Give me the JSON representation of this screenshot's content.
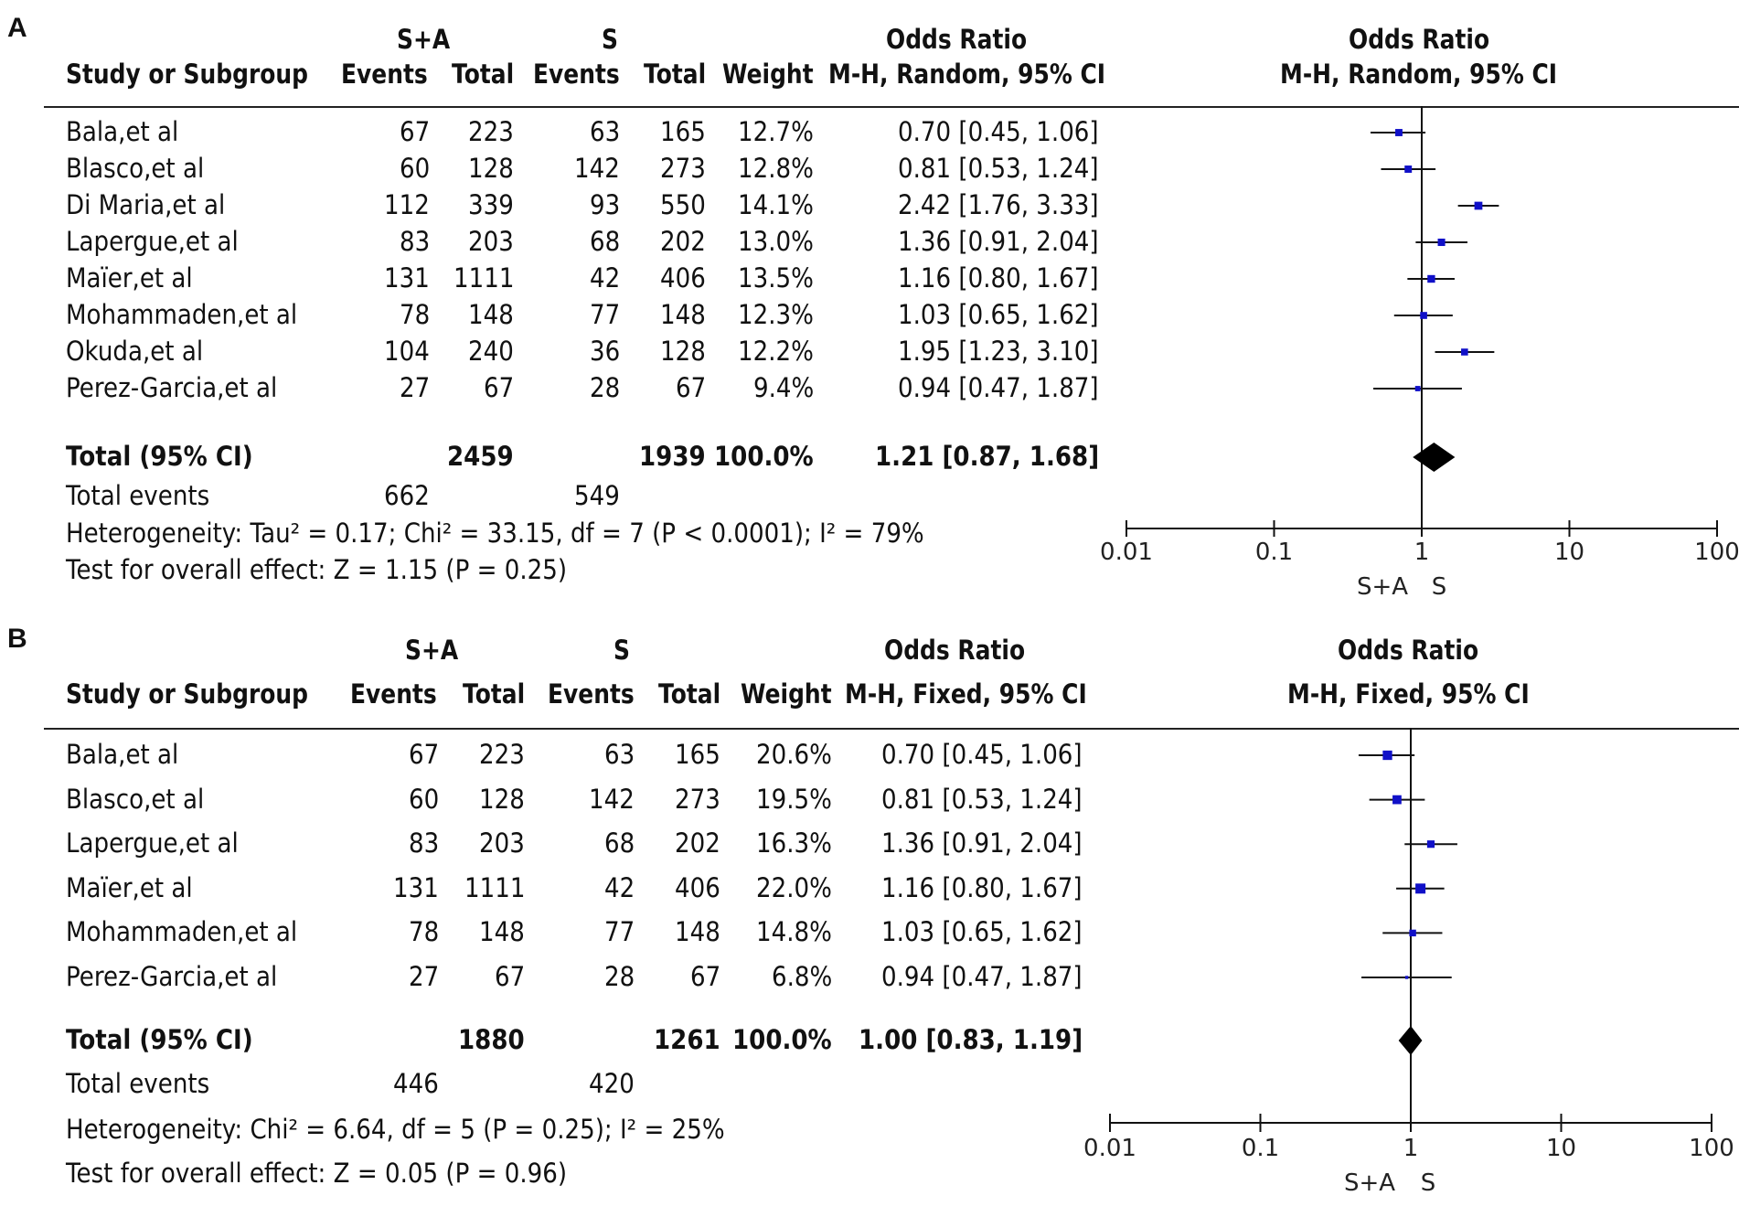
{
  "chart_data": [
    {
      "type": "forest",
      "panel_label": "A",
      "header": {
        "group1": "S+A",
        "group2": "S",
        "or_col_title": "Odds Ratio",
        "or_col_method": "M-H, Random, 95% CI",
        "plot_title": "Odds Ratio",
        "plot_method": "M-H, Random, 95% CI",
        "study_col": "Study or Subgroup",
        "events": "Events",
        "total": "Total",
        "weight": "Weight"
      },
      "studies": [
        {
          "name": "Bala,et al",
          "e1": "67",
          "n1": "223",
          "e2": "63",
          "n2": "165",
          "weight": "12.7%",
          "or_text": "0.70 [0.45, 1.06]",
          "or": 0.7,
          "lo": 0.45,
          "hi": 1.06,
          "w": 12.7
        },
        {
          "name": "Blasco,et al",
          "e1": "60",
          "n1": "128",
          "e2": "142",
          "n2": "273",
          "weight": "12.8%",
          "or_text": "0.81 [0.53, 1.24]",
          "or": 0.81,
          "lo": 0.53,
          "hi": 1.24,
          "w": 12.8
        },
        {
          "name": "Di Maria,et al",
          "e1": "112",
          "n1": "339",
          "e2": "93",
          "n2": "550",
          "weight": "14.1%",
          "or_text": "2.42 [1.76, 3.33]",
          "or": 2.42,
          "lo": 1.76,
          "hi": 3.33,
          "w": 14.1
        },
        {
          "name": "Lapergue,et al",
          "e1": "83",
          "n1": "203",
          "e2": "68",
          "n2": "202",
          "weight": "13.0%",
          "or_text": "1.36 [0.91, 2.04]",
          "or": 1.36,
          "lo": 0.91,
          "hi": 2.04,
          "w": 13.0
        },
        {
          "name": "Maïer,et al",
          "e1": "131",
          "n1": "1111",
          "e2": "42",
          "n2": "406",
          "weight": "13.5%",
          "or_text": "1.16 [0.80, 1.67]",
          "or": 1.16,
          "lo": 0.8,
          "hi": 1.67,
          "w": 13.5
        },
        {
          "name": "Mohammaden,et al",
          "e1": "78",
          "n1": "148",
          "e2": "77",
          "n2": "148",
          "weight": "12.3%",
          "or_text": "1.03 [0.65, 1.62]",
          "or": 1.03,
          "lo": 0.65,
          "hi": 1.62,
          "w": 12.3
        },
        {
          "name": "Okuda,et al",
          "e1": "104",
          "n1": "240",
          "e2": "36",
          "n2": "128",
          "weight": "12.2%",
          "or_text": "1.95 [1.23, 3.10]",
          "or": 1.95,
          "lo": 1.23,
          "hi": 3.1,
          "w": 12.2
        },
        {
          "name": "Perez-Garcia,et al",
          "e1": "27",
          "n1": "67",
          "e2": "28",
          "n2": "67",
          "weight": "9.4%",
          "or_text": "0.94 [0.47, 1.87]",
          "or": 0.94,
          "lo": 0.47,
          "hi": 1.87,
          "w": 9.4
        }
      ],
      "total": {
        "label": "Total (95% CI)",
        "n1": "2459",
        "n2": "1939",
        "weight": "100.0%",
        "or_text": "1.21 [0.87, 1.68]",
        "or": 1.21,
        "lo": 0.87,
        "hi": 1.68
      },
      "total_events": {
        "label": "Total events",
        "e1": "662",
        "e2": "549"
      },
      "heterogeneity": "Heterogeneity: Tau² = 0.17; Chi² = 33.15, df = 7 (P < 0.0001); I² = 79%",
      "overall_effect": "Test for overall effect: Z = 1.15 (P = 0.25)",
      "x_scale": "log",
      "xlim": [
        0.01,
        100
      ],
      "ticks": [
        0.01,
        0.1,
        1,
        10,
        100
      ],
      "tick_labels": [
        "0.01",
        "0.1",
        "1",
        "10",
        "100"
      ],
      "favours": [
        "S+A",
        "S"
      ]
    },
    {
      "type": "forest",
      "panel_label": "B",
      "header": {
        "group1": "S+A",
        "group2": "S",
        "or_col_title": "Odds Ratio",
        "or_col_method": "M-H, Fixed, 95% CI",
        "plot_title": "Odds Ratio",
        "plot_method": "M-H, Fixed, 95% CI",
        "study_col": "Study or Subgroup",
        "events": "Events",
        "total": "Total",
        "weight": "Weight"
      },
      "studies": [
        {
          "name": "Bala,et al",
          "e1": "67",
          "n1": "223",
          "e2": "63",
          "n2": "165",
          "weight": "20.6%",
          "or_text": "0.70 [0.45, 1.06]",
          "or": 0.7,
          "lo": 0.45,
          "hi": 1.06,
          "w": 20.6
        },
        {
          "name": "Blasco,et al",
          "e1": "60",
          "n1": "128",
          "e2": "142",
          "n2": "273",
          "weight": "19.5%",
          "or_text": "0.81 [0.53, 1.24]",
          "or": 0.81,
          "lo": 0.53,
          "hi": 1.24,
          "w": 19.5
        },
        {
          "name": "Lapergue,et al",
          "e1": "83",
          "n1": "203",
          "e2": "68",
          "n2": "202",
          "weight": "16.3%",
          "or_text": "1.36 [0.91, 2.04]",
          "or": 1.36,
          "lo": 0.91,
          "hi": 2.04,
          "w": 16.3
        },
        {
          "name": "Maïer,et al",
          "e1": "131",
          "n1": "1111",
          "e2": "42",
          "n2": "406",
          "weight": "22.0%",
          "or_text": "1.16 [0.80, 1.67]",
          "or": 1.16,
          "lo": 0.8,
          "hi": 1.67,
          "w": 22.0
        },
        {
          "name": "Mohammaden,et al",
          "e1": "78",
          "n1": "148",
          "e2": "77",
          "n2": "148",
          "weight": "14.8%",
          "or_text": "1.03 [0.65, 1.62]",
          "or": 1.03,
          "lo": 0.65,
          "hi": 1.62,
          "w": 14.8
        },
        {
          "name": "Perez-Garcia,et al",
          "e1": "27",
          "n1": "67",
          "e2": "28",
          "n2": "67",
          "weight": "6.8%",
          "or_text": "0.94 [0.47, 1.87]",
          "or": 0.94,
          "lo": 0.47,
          "hi": 1.87,
          "w": 6.8
        }
      ],
      "total": {
        "label": "Total (95% CI)",
        "n1": "1880",
        "n2": "1261",
        "weight": "100.0%",
        "or_text": "1.00 [0.83, 1.19]",
        "or": 1.0,
        "lo": 0.83,
        "hi": 1.19
      },
      "total_events": {
        "label": "Total events",
        "e1": "446",
        "e2": "420"
      },
      "heterogeneity": "Heterogeneity: Chi² = 6.64, df = 5 (P = 0.25); I² = 25%",
      "overall_effect": "Test for overall effect: Z = 0.05 (P = 0.96)",
      "x_scale": "log",
      "xlim": [
        0.01,
        100
      ],
      "ticks": [
        0.01,
        0.1,
        1,
        10,
        100
      ],
      "tick_labels": [
        "0.01",
        "0.1",
        "1",
        "10",
        "100"
      ],
      "favours": [
        "S+A",
        "S"
      ]
    }
  ],
  "colors": {
    "marker": "#1010c8",
    "line": "#111111",
    "diamond": "#000000"
  }
}
